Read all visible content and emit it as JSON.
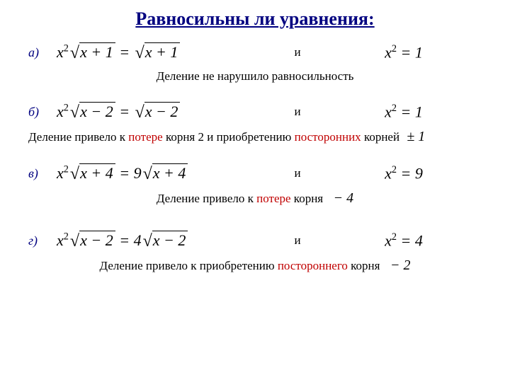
{
  "title": "Равносильны ли уравнения:",
  "connector": "и",
  "items": {
    "a": {
      "label": "а)",
      "left_html": "<span class='x'>x</span><sup>2</sup><span class='sqrt'><span><span class='x'>x</span> + 1</span></span> = <span class='sqrt'><span><span class='x'>x</span> + 1</span></span>",
      "right_html": "<span class='x'>x</span><sup>2</sup> = 1",
      "explain_html": "Деление не нарушило равносильность",
      "explain_align": "center"
    },
    "b": {
      "label": "б)",
      "left_html": "<span class='x'>x</span><sup>2</sup><span class='sqrt'><span><span class='x'>x</span> − 2</span></span> = <span class='sqrt'><span><span class='x'>x</span> − 2</span></span>",
      "right_html": "<span class='x'>x</span><sup>2</sup> = 1",
      "explain_html": "Деление привело к <span class='red'>потере</span> корня 2 и приобретению <span class='red'>посторонних</span> корней <span class='mathval'>± 1</span>",
      "explain_align": "left"
    },
    "v": {
      "label": "в)",
      "left_html": "<span class='x'>x</span><sup>2</sup><span class='sqrt'><span><span class='x'>x</span> + 4</span></span> = 9<span class='sqrt'><span><span class='x'>x</span> + 4</span></span>",
      "right_html": "<span class='x'>x</span><sup>2</sup> = 9",
      "explain_html": "Деление привело к <span class='red'>потере</span> корня&nbsp;&nbsp;<span class='mathval'>− 4</span>",
      "explain_align": "center"
    },
    "g": {
      "label": "г)",
      "left_html": "<span class='x'>x</span><sup>2</sup><span class='sqrt'><span><span class='x'>x</span> − 2</span></span> = 4<span class='sqrt'><span><span class='x'>x</span> − 2</span></span>",
      "right_html": "<span class='x'>x</span><sup>2</sup> = 4",
      "explain_html": "Деление привело к приобретению <span class='red'>постороннего</span> корня&nbsp;&nbsp;<span class='mathval'>− 2</span>",
      "explain_align": "center"
    }
  },
  "colors": {
    "title": "#000080",
    "labels": "#000080",
    "emphasis": "#c00000",
    "text": "#000000",
    "background": "#ffffff"
  },
  "fonts": {
    "title_size": 26,
    "body_size": 17,
    "math_size": 22
  }
}
